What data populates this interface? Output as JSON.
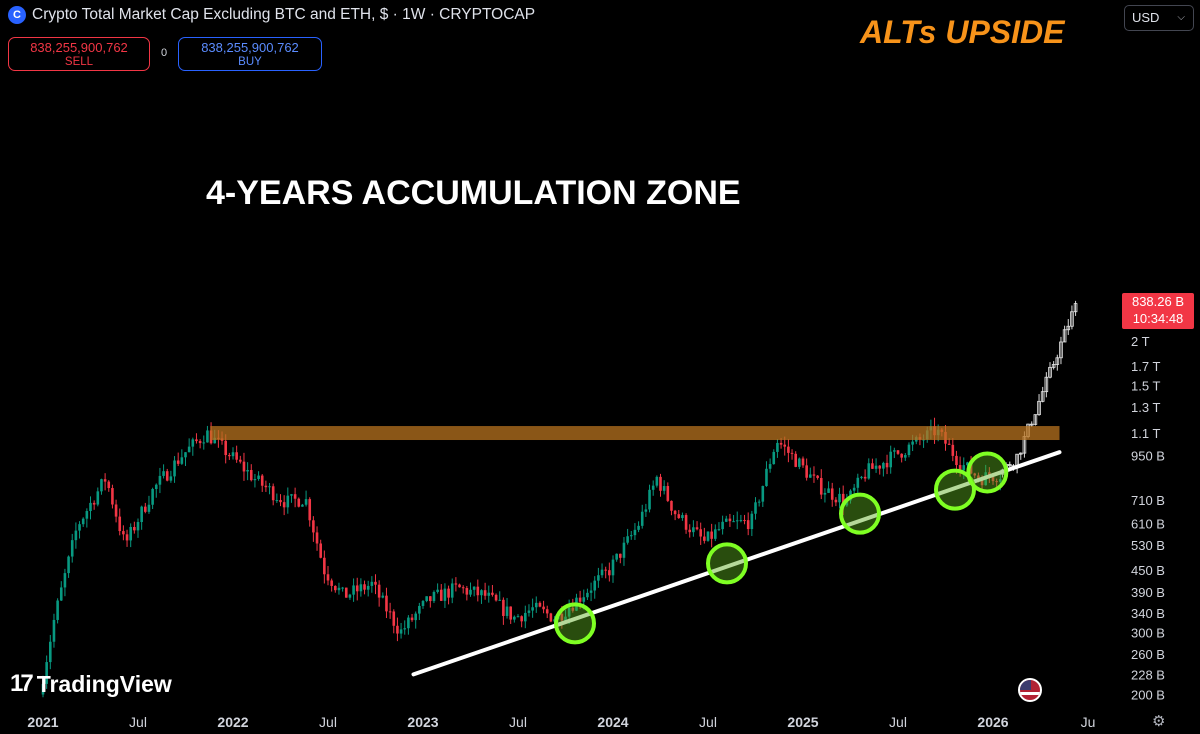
{
  "header": {
    "title": "Crypto Total Market Cap Excluding BTC and ETH, $ · 1W · CRYPTOCAP",
    "logo_glyph": "C",
    "sell_price": "838,255,900,762",
    "sell_label": "SELL",
    "spread": "0",
    "buy_price": "838,255,900,762",
    "buy_label": "BUY"
  },
  "currency_select": {
    "value": "USD",
    "caret": "⌵"
  },
  "last_price": {
    "value": "838.26 B",
    "countdown": "10:34:48"
  },
  "branding": {
    "name": "TradingView",
    "mark": "17"
  },
  "settings_icon": "⚙",
  "colors": {
    "up": "#089981",
    "down": "#f23645",
    "zone": "#b8731f",
    "circle": "#7fff23",
    "headline": "#f7931a"
  },
  "chart_data": {
    "type": "candlestick",
    "title": "Crypto Total Market Cap Excluding BTC and ETH, $ · 1W · CRYPTOCAP",
    "y_scale": "log",
    "y_ticks": [
      "2 T",
      "1.7 T",
      "1.5 T",
      "1.3 T",
      "1.1 T",
      "950 B",
      "710 B",
      "610 B",
      "530 B",
      "450 B",
      "390 B",
      "340 B",
      "300 B",
      "260 B",
      "228 B",
      "200 B"
    ],
    "x_ticks": [
      "2021",
      "Jul",
      "2022",
      "Jul",
      "2023",
      "Jul",
      "2024",
      "Jul",
      "2025",
      "Jul",
      "2026",
      "Ju"
    ],
    "price_path_billions": [
      [
        2021.0,
        200
      ],
      [
        2021.08,
        330
      ],
      [
        2021.2,
        600
      ],
      [
        2021.35,
        820
      ],
      [
        2021.45,
        530
      ],
      [
        2021.6,
        760
      ],
      [
        2021.75,
        950
      ],
      [
        2021.88,
        1100
      ],
      [
        2022.05,
        900
      ],
      [
        2022.15,
        800
      ],
      [
        2022.3,
        700
      ],
      [
        2022.4,
        720
      ],
      [
        2022.5,
        450
      ],
      [
        2022.6,
        380
      ],
      [
        2022.75,
        410
      ],
      [
        2022.9,
        300
      ],
      [
        2023.05,
        370
      ],
      [
        2023.2,
        400
      ],
      [
        2023.35,
        380
      ],
      [
        2023.5,
        330
      ],
      [
        2023.6,
        350
      ],
      [
        2023.72,
        330
      ],
      [
        2023.85,
        380
      ],
      [
        2024.0,
        450
      ],
      [
        2024.15,
        600
      ],
      [
        2024.25,
        820
      ],
      [
        2024.35,
        650
      ],
      [
        2024.5,
        540
      ],
      [
        2024.6,
        600
      ],
      [
        2024.75,
        620
      ],
      [
        2024.88,
        1050
      ],
      [
        2025.0,
        900
      ],
      [
        2025.1,
        780
      ],
      [
        2025.25,
        700
      ],
      [
        2025.35,
        850
      ],
      [
        2025.5,
        950
      ],
      [
        2025.6,
        1020
      ],
      [
        2025.72,
        1120
      ],
      [
        2025.85,
        900
      ],
      [
        2025.95,
        820
      ],
      [
        2026.05,
        840
      ]
    ],
    "projection_path_billions": [
      [
        2026.05,
        840
      ],
      [
        2026.15,
        950
      ],
      [
        2026.25,
        1300
      ],
      [
        2026.35,
        1800
      ],
      [
        2026.45,
        2500
      ]
    ],
    "zone_billions": [
      1050,
      1150
    ],
    "zone_label": "4-YEARS ACCUMULATION ZONE",
    "headline": "ALTs UPSIDE",
    "trendline_points": [
      [
        2022.95,
        228
      ],
      [
        2026.35,
        970
      ]
    ],
    "touch_points": [
      [
        2023.8,
        318
      ],
      [
        2024.6,
        470
      ],
      [
        2025.3,
        650
      ],
      [
        2025.8,
        760
      ],
      [
        2025.97,
        850
      ]
    ]
  }
}
